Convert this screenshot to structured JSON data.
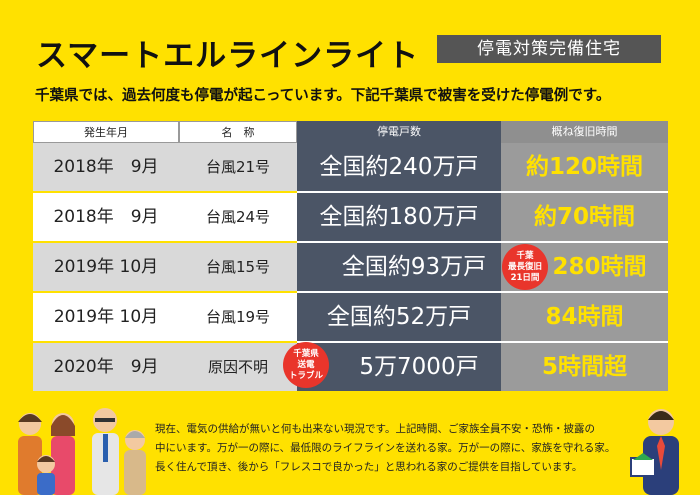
{
  "title": "スマートエルラインライト",
  "tag": "停電対策完備住宅",
  "lead": "千葉県では、過去何度も停電が起こっています。下記千葉県で被害を受けた停電例です。",
  "table": {
    "headers": [
      "発生年月",
      "名　称",
      "停電戸数",
      "概ね復旧時間"
    ],
    "rows": [
      {
        "date": "2018年　9月",
        "name": "台風21号",
        "houses": "全国約240万戸",
        "time": "約120時間"
      },
      {
        "date": "2018年　9月",
        "name": "台風24号",
        "houses": "全国約180万戸",
        "time": "約70時間"
      },
      {
        "date": "2019年 10月",
        "name": "台風15号",
        "houses": "全国約93万戸",
        "time": "280時間"
      },
      {
        "date": "2019年 10月",
        "name": "台風19号",
        "houses": "全国約52万戸",
        "time": "84時間"
      },
      {
        "date": "2020年　9月",
        "name": "原因不明",
        "houses": "5万7000戸",
        "time": "5時間超"
      }
    ]
  },
  "badges": {
    "recovery": [
      "千葉",
      "最長復旧",
      "21日間"
    ],
    "trouble": [
      "千葉県",
      "送電",
      "トラブル"
    ]
  },
  "footer": [
    "現在、電気の供給が無いと何も出来ない現況です。上記時間、ご家族全員不安・恐怖・披露の",
    "中にいます。万が一の際に、最低限のライフラインを送れる家。万が一の際に、家族を守れる家。",
    "長く住んで頂き、後から「フレスコで良かった」と思われる家のご提供を目指しています。"
  ],
  "colors": {
    "background": "#FFE100",
    "dark_cell": "#4b5566",
    "gray_cell": "#9b9b9b",
    "badge": "#e9352b"
  }
}
